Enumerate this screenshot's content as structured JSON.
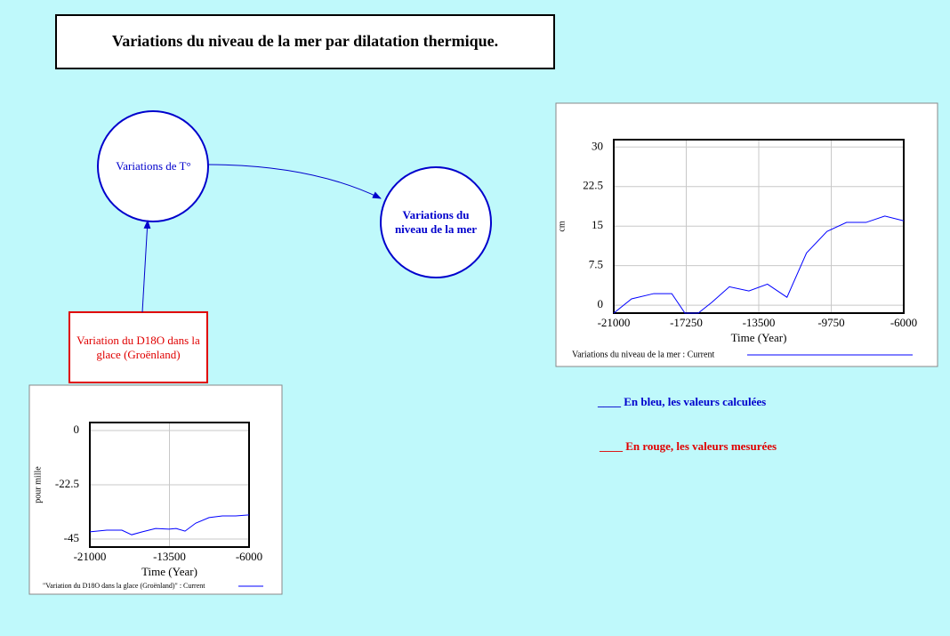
{
  "title": "Variations du niveau de la mer par dilatation thermique.",
  "nodes": [
    {
      "label": "Variations de T°"
    },
    {
      "label": "Variations du niveau de la mer"
    },
    {
      "label": "Variation du D18O dans la glace (Groënland)"
    }
  ],
  "notes": [
    "____ En bleu, les valeurs calculées",
    "____ En rouge, les valeurs mesurées"
  ],
  "chart_data": [
    {
      "type": "line",
      "xlabel": "Time (Year)",
      "ylabel": "cm",
      "x": [
        -21000,
        -20080,
        -18930,
        -18000,
        -17320,
        -16630,
        -15940,
        -15020,
        -14010,
        -13050,
        -12040,
        -11030,
        -9970,
        -8960,
        -7950,
        -6980,
        -6000
      ],
      "series": [
        {
          "name": "Variations du niveau de la mer : Current",
          "color": "#0000ff",
          "values": [
            -1.5,
            1.2,
            2.2,
            2.2,
            -1.5,
            -1.5,
            0.5,
            3.5,
            2.7,
            4,
            1.5,
            9.9,
            14,
            15.7,
            15.7,
            16.9,
            16
          ]
        }
      ],
      "xlim": [
        -21000,
        -6000
      ],
      "xticks": [
        -21000,
        -17250,
        -13500,
        -9750,
        -6000
      ],
      "ylim": [
        -1.5,
        31.4
      ],
      "yticks": [
        0,
        7.5,
        15,
        22.5,
        30
      ],
      "grid": true
    },
    {
      "type": "line",
      "xlabel": "Time (Year)",
      "ylabel": "pour mille",
      "x": [
        -21000,
        -19408,
        -17983,
        -17061,
        -16056,
        -14799,
        -13542,
        -12871,
        -12033,
        -11027,
        -9770,
        -8514,
        -7257,
        -6000
      ],
      "series": [
        {
          "name": "\"Variation du D18O dans la glace (Groënland)\" : Current",
          "color": "#0000ff",
          "values": [
            -42,
            -41.3,
            -41.3,
            -43.2,
            -42,
            -40.6,
            -40.9,
            -40.6,
            -41.7,
            -38.4,
            -36.1,
            -35.4,
            -35.4,
            -35
          ]
        }
      ],
      "xlim": [
        -21000,
        -6000
      ],
      "xticks": [
        -21000,
        -13500,
        -6000
      ],
      "ylim": [
        -48.3,
        3.3
      ],
      "yticks": [
        0,
        -22.5,
        -45
      ],
      "grid": true
    }
  ]
}
